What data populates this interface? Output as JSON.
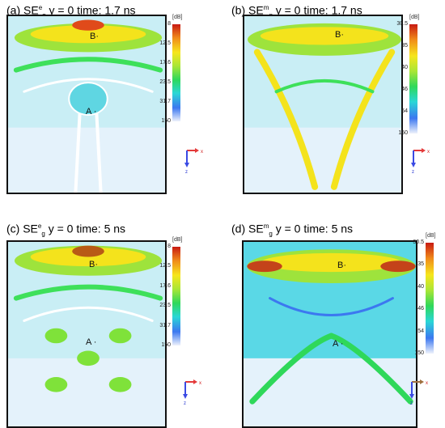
{
  "chart_data": [
    {
      "type": "heatmap",
      "label": "(a)",
      "quantity": "SE",
      "quantity_sup": "e",
      "quantity_sub": "g",
      "plane": "y = 0",
      "time": "time: 1.7 ns",
      "markers": [
        "A",
        "B"
      ],
      "colorbar": {
        "unit": "[dB]",
        "ticks": [
          "8",
          "12.5",
          "17.6",
          "23.5",
          "31.7",
          "150"
        ]
      },
      "axes": {
        "horizontal": "x",
        "vertical": "z"
      }
    },
    {
      "type": "heatmap",
      "label": "(b)",
      "quantity": "SE",
      "quantity_sup": "m",
      "quantity_sub": "g",
      "plane": "y = 0",
      "time": "time: 1.7 ns",
      "markers": [
        "B"
      ],
      "colorbar": {
        "unit": "[dB]",
        "ticks": [
          "30.5",
          "35",
          "40",
          "46",
          "54",
          "150"
        ]
      },
      "axes": {
        "horizontal": "x",
        "vertical": "z"
      }
    },
    {
      "type": "heatmap",
      "label": "(c)",
      "quantity": "SE",
      "quantity_sup": "e",
      "quantity_sub": "g",
      "plane": "y = 0",
      "time": "time: 5 ns",
      "markers": [
        "A",
        "B"
      ],
      "colorbar": {
        "unit": "[dB]",
        "ticks": [
          "8",
          "12.5",
          "17.6",
          "23.5",
          "31.7",
          "150"
        ]
      },
      "axes": {
        "horizontal": "x",
        "vertical": "z"
      }
    },
    {
      "type": "heatmap",
      "label": "(d)",
      "quantity": "SE",
      "quantity_sup": "m",
      "quantity_sub": "g",
      "plane": "y = 0",
      "time": "time: 5 ns",
      "markers": [
        "A",
        "B"
      ],
      "colorbar": {
        "unit": "[dB]",
        "ticks": [
          "30.5",
          "35",
          "40",
          "46",
          "54",
          "150"
        ]
      },
      "axes": {
        "horizontal": "x",
        "vertical": "z"
      }
    }
  ]
}
